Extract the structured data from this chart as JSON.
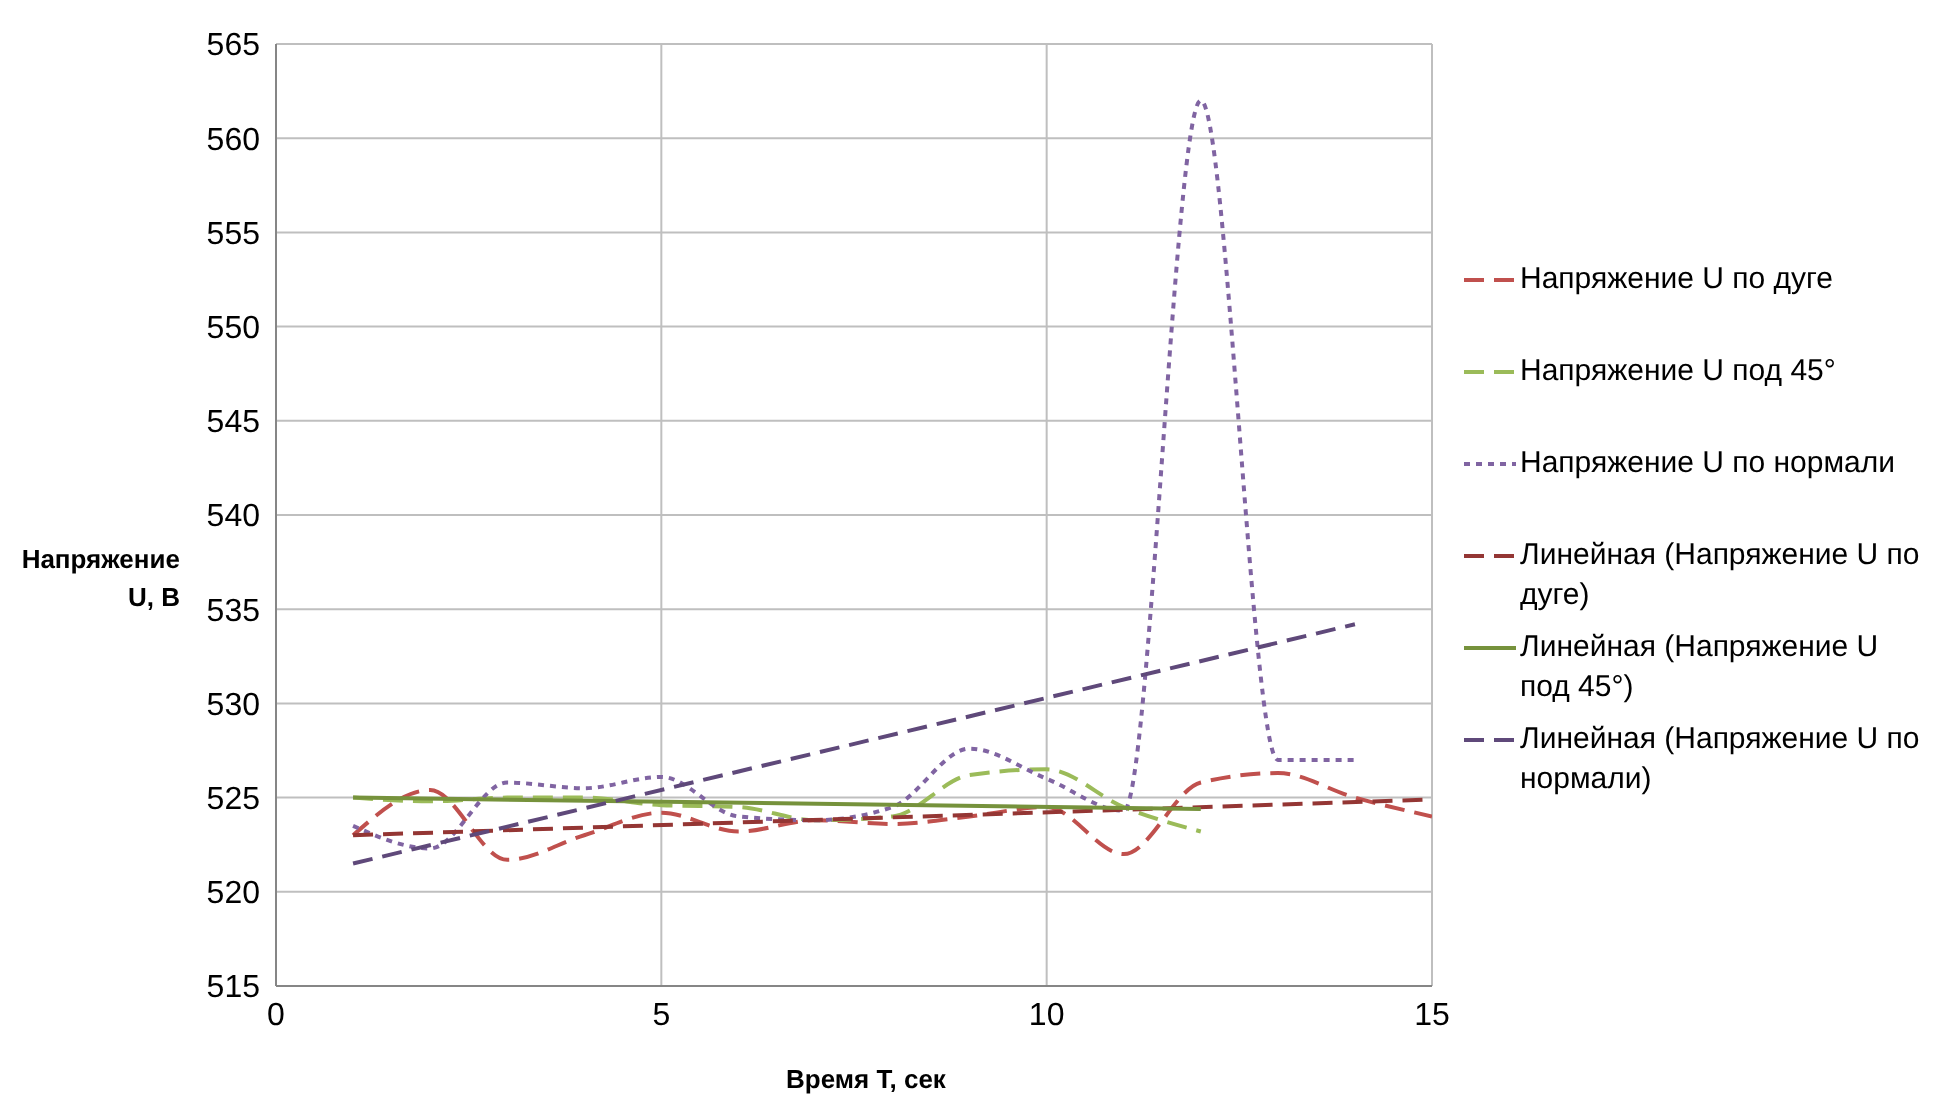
{
  "chart_data": {
    "type": "line",
    "xlabel": "Время T, сек",
    "ylabel": "Напряжение U, В",
    "xlim": [
      0,
      15
    ],
    "xticks": [
      0,
      5,
      10,
      15
    ],
    "ylim": [
      515,
      565
    ],
    "yticks": [
      515,
      520,
      525,
      530,
      535,
      540,
      545,
      550,
      555,
      560,
      565
    ],
    "grid": true,
    "legend": "right",
    "marker": "none",
    "series": [
      {
        "name": "Напряжение U по дуге",
        "color": "#c0504d",
        "line_style": "dashed",
        "x": [
          1,
          2,
          3,
          4,
          5,
          6,
          7,
          8,
          9,
          10,
          11,
          12,
          13,
          14,
          15
        ],
        "values": [
          523,
          525.4,
          521.7,
          523,
          524.2,
          523.2,
          523.8,
          523.6,
          524,
          524.5,
          522,
          525.8,
          526.3,
          525,
          524
        ]
      },
      {
        "name": "Напряжение U  под 45°",
        "color": "#9bbb59",
        "line_style": "dashed",
        "x": [
          1,
          2,
          3,
          4,
          5,
          6,
          7,
          8,
          9,
          10,
          11,
          12
        ],
        "values": [
          525,
          524.8,
          525,
          525,
          524.6,
          524.5,
          523.8,
          524,
          526.2,
          526.5,
          524.5,
          523.2
        ]
      },
      {
        "name": "Напряжение U по нормали",
        "color": "#8064a2",
        "line_style": "dotted",
        "x": [
          1,
          2,
          3,
          4,
          5,
          6,
          7,
          8,
          9,
          10,
          11,
          12,
          13,
          14
        ],
        "values": [
          523.5,
          522.3,
          525.8,
          525.5,
          526.1,
          524,
          523.8,
          524.5,
          527.6,
          526,
          524.3,
          562,
          527,
          527
        ]
      },
      {
        "name": "Линейная (Напряжение U по дуге)",
        "color": "#943634",
        "line_style": "dashed",
        "x": [
          1,
          15
        ],
        "values": [
          523,
          524.9
        ]
      },
      {
        "name": "Линейная (Напряжение U под 45°)",
        "color": "#76923c",
        "line_style": "solid",
        "x": [
          1,
          12
        ],
        "values": [
          525,
          524.4
        ]
      },
      {
        "name": "Линейная (Напряжение U по нормали)",
        "color": "#5f497a",
        "line_style": "dashed",
        "x": [
          1,
          14
        ],
        "values": [
          521.5,
          534.2
        ]
      }
    ]
  }
}
